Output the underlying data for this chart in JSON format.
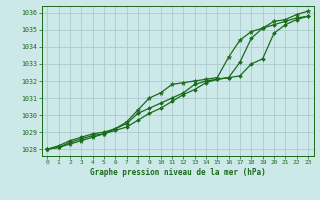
{
  "bg_color": "#cce8e8",
  "grid_color": "#aacccc",
  "line_color": "#1a6b1a",
  "title": "Graphe pression niveau de la mer (hPa)",
  "xlim": [
    -0.5,
    23.5
  ],
  "ylim": [
    1027.6,
    1036.4
  ],
  "yticks": [
    1028,
    1029,
    1030,
    1031,
    1032,
    1033,
    1034,
    1035,
    1036
  ],
  "xticks": [
    0,
    1,
    2,
    3,
    4,
    5,
    6,
    7,
    8,
    9,
    10,
    11,
    12,
    13,
    14,
    15,
    16,
    17,
    18,
    19,
    20,
    21,
    22,
    23
  ],
  "series": [
    [
      1028.0,
      1028.1,
      1028.4,
      1028.6,
      1028.8,
      1028.9,
      1029.1,
      1029.3,
      1029.7,
      1030.1,
      1030.4,
      1030.8,
      1031.2,
      1031.5,
      1031.9,
      1032.1,
      1032.2,
      1033.1,
      1034.5,
      1035.1,
      1035.3,
      1035.5,
      1035.7,
      1035.8
    ],
    [
      1028.0,
      1028.2,
      1028.5,
      1028.7,
      1028.9,
      1029.0,
      1029.2,
      1029.5,
      1030.1,
      1030.4,
      1030.7,
      1031.0,
      1031.3,
      1031.8,
      1032.0,
      1032.1,
      1032.2,
      1032.3,
      1033.0,
      1033.3,
      1034.8,
      1035.3,
      1035.6,
      1035.8
    ],
    [
      1028.0,
      1028.1,
      1028.3,
      1028.5,
      1028.7,
      1028.9,
      1029.2,
      1029.6,
      1030.3,
      1031.0,
      1031.3,
      1031.8,
      1031.9,
      1032.0,
      1032.1,
      1032.2,
      1033.4,
      1034.4,
      1034.9,
      1035.1,
      1035.5,
      1035.6,
      1035.9,
      1036.1
    ]
  ],
  "markers": [
    "D",
    "D",
    "*"
  ],
  "msizes": [
    2.0,
    2.0,
    3.5
  ],
  "linewidths": [
    0.9,
    0.9,
    0.9
  ]
}
